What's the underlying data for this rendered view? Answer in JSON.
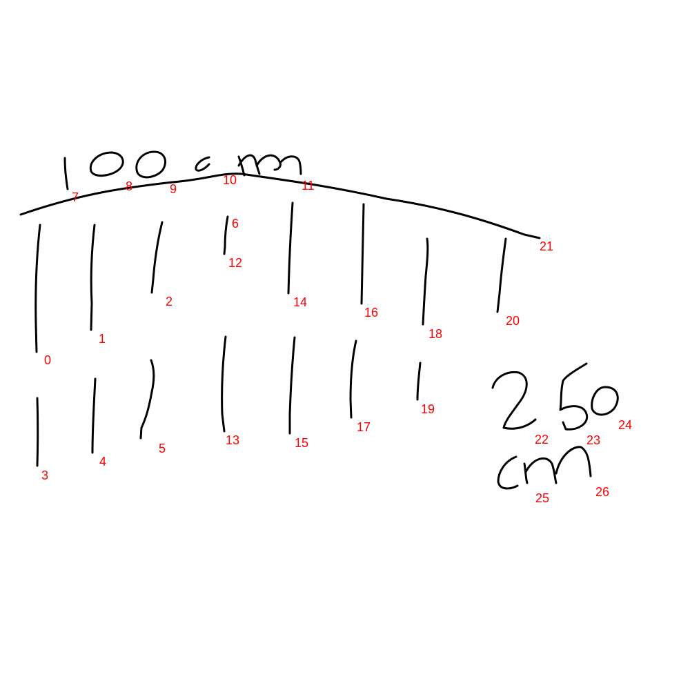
{
  "colors": {
    "ink": "#000000",
    "label": "#ff0000",
    "background": "#ffffff"
  },
  "handwritten_text": {
    "top": "100 cm",
    "right_number": "250",
    "right_unit": "cm"
  },
  "stroke_labels": [
    "0",
    "1",
    "2",
    "3",
    "4",
    "5",
    "6",
    "7",
    "8",
    "9",
    "10",
    "11",
    "12",
    "13",
    "14",
    "15",
    "16",
    "17",
    "18",
    "19",
    "20",
    "21",
    "22",
    "23",
    "24",
    "25",
    "26"
  ]
}
